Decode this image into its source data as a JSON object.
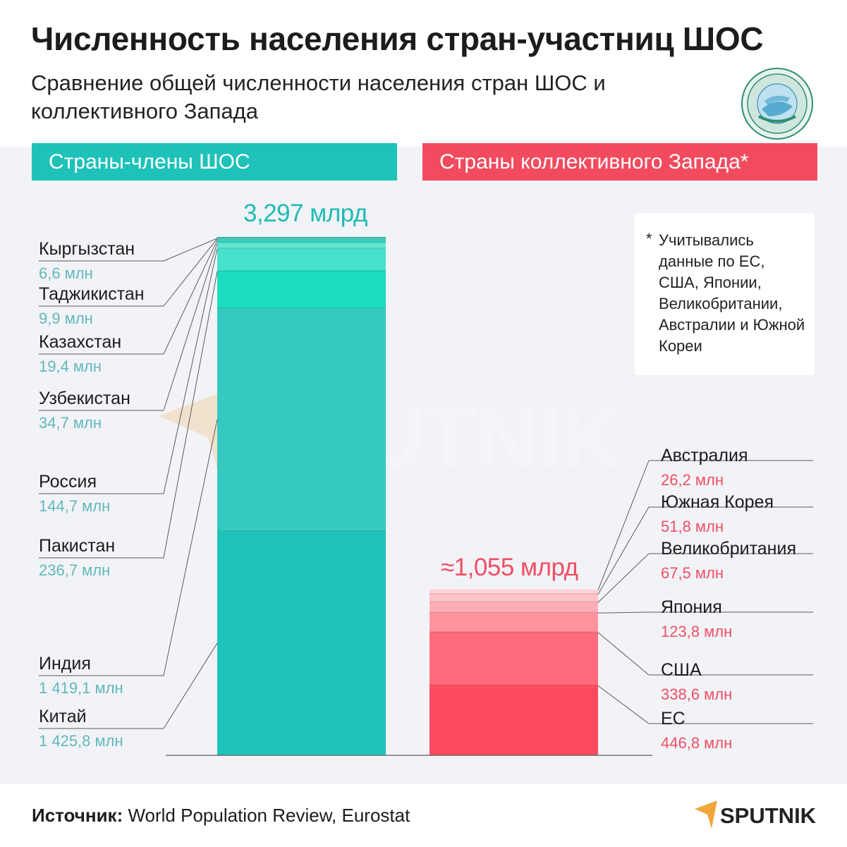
{
  "title": "Численность населения стран-участниц ШОС",
  "subtitle": "Сравнение общей численности населения стран ШОС и коллективного Запада",
  "groups": {
    "sco_label": "Страны-члены ШОС",
    "west_label": "Страны коллективного Запада*"
  },
  "note": {
    "star": "*",
    "text": "Учитывались данные по ЕС, США, Японии, Великобритании, Австралии и Южной Кореи"
  },
  "source": {
    "label": "Источник:",
    "text": "World Population Review, Eurostat"
  },
  "brand": {
    "logo_text": "SPUTNIK",
    "watermark_text": "SPUTNIK"
  },
  "colors": {
    "sco_header": "#1fc2b8",
    "west_header": "#f24b5f",
    "sco_value": "#5fb8bb",
    "west_value": "#f04e64"
  },
  "chart_data": {
    "type": "bar",
    "stacked": true,
    "title": "Численность населения стран-участниц ШОС",
    "ylabel": "",
    "xlabel": "",
    "unit": "млн",
    "series": [
      {
        "name": "Страны-члены ШОС",
        "total_label": "3,297 млрд",
        "segments": [
          {
            "country": "Китай",
            "value": 1425.8,
            "value_label": "1 425,8 млн",
            "color": "#1fc2b9"
          },
          {
            "country": "Индия",
            "value": 1419.1,
            "value_label": "1 419,1 млн",
            "color": "#35c9bf"
          },
          {
            "country": "Пакистан",
            "value": 236.7,
            "value_label": "236,7 млн",
            "color": "#19dcc0"
          },
          {
            "country": "Россия",
            "value": 144.7,
            "value_label": "144,7 млн",
            "color": "#46e2cb"
          },
          {
            "country": "Узбекистан",
            "value": 34.7,
            "value_label": "34,7 млн",
            "color": "#63e6d3"
          },
          {
            "country": "Казахстан",
            "value": 19.4,
            "value_label": "19,4 млн",
            "color": "#35d0bf"
          },
          {
            "country": "Таджикистан",
            "value": 9.9,
            "value_label": "9,9 млн",
            "color": "#58dcc9"
          },
          {
            "country": "Кыргызстан",
            "value": 6.6,
            "value_label": "6,6 млн",
            "color": "#25b7a9"
          }
        ]
      },
      {
        "name": "Страны коллективного Запада*",
        "total_label": "≈1,055 млрд",
        "segments": [
          {
            "country": "ЕС",
            "value": 446.8,
            "value_label": "446,8 млн",
            "color": "#ff4b5f"
          },
          {
            "country": "США",
            "value": 338.6,
            "value_label": "338,6 млн",
            "color": "#ff6b7d"
          },
          {
            "country": "Япония",
            "value": 123.8,
            "value_label": "123,8 млн",
            "color": "#ff949f"
          },
          {
            "country": "Великобритания",
            "value": 67.5,
            "value_label": "67,5 млн",
            "color": "#ffadb5"
          },
          {
            "country": "Южная Корея",
            "value": 51.8,
            "value_label": "51,8 млн",
            "color": "#ffc3c9"
          },
          {
            "country": "Австралия",
            "value": 26.2,
            "value_label": "26,2 млн",
            "color": "#ffd3d8"
          }
        ]
      }
    ]
  }
}
